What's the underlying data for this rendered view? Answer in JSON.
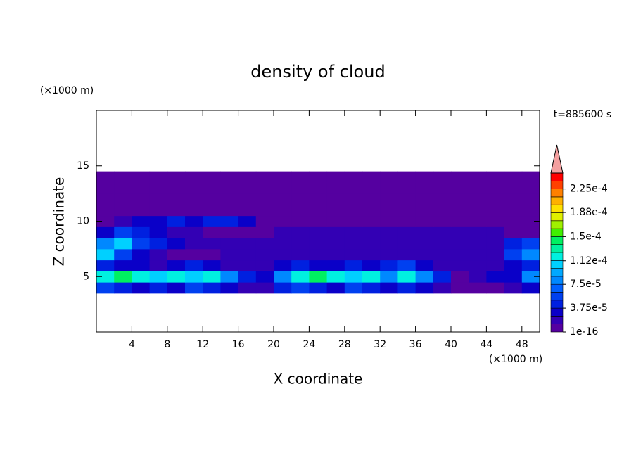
{
  "chart_data": {
    "type": "contour",
    "title": "density of cloud",
    "annotation": "t=885600 s",
    "x_unit": "(×1000 m)",
    "y_unit": "(×1000 m)",
    "xlabel": "X coordinate",
    "ylabel": "Z coordinate",
    "xlim": [
      0,
      50
    ],
    "ylim": [
      0,
      20
    ],
    "xticks": [
      4,
      8,
      12,
      16,
      20,
      24,
      28,
      32,
      36,
      40,
      44,
      48
    ],
    "yticks": [
      5,
      10,
      15
    ],
    "x": [
      1,
      3,
      5,
      7,
      9,
      11,
      13,
      15,
      17,
      19,
      21,
      23,
      25,
      27,
      29,
      31,
      33,
      35,
      37,
      39,
      41,
      43,
      45,
      47,
      49
    ],
    "z": [
      4,
      5,
      6,
      7,
      8,
      9,
      10,
      11,
      12,
      13,
      14
    ],
    "values": [
      [
        6e-05,
        4.5e-05,
        3e-05,
        4.5e-05,
        3e-05,
        6e-05,
        4.5e-05,
        3e-05,
        1.5e-05,
        1.5e-05,
        4.5e-05,
        6e-05,
        4.5e-05,
        3e-05,
        6e-05,
        4.5e-05,
        3e-05,
        4.5e-05,
        3e-05,
        1.5e-05,
        5e-06,
        5e-06,
        5e-06,
        1.5e-05,
        3e-05
      ],
      [
        0.00012,
        0.00014,
        0.00012,
        0.0001,
        0.00012,
        0.0001,
        0.00012,
        8e-05,
        4.5e-05,
        3e-05,
        8e-05,
        0.00012,
        0.00014,
        0.00012,
        0.0001,
        0.00012,
        8e-05,
        0.00012,
        8e-05,
        4.5e-05,
        5e-06,
        1.5e-05,
        3e-05,
        3e-05,
        8e-05
      ],
      [
        4.5e-05,
        3e-05,
        3e-05,
        1.5e-05,
        3e-05,
        4.5e-05,
        3e-05,
        1.5e-05,
        1.5e-05,
        1.5e-05,
        3e-05,
        4.5e-05,
        3e-05,
        3e-05,
        4.5e-05,
        3e-05,
        4.5e-05,
        6e-05,
        3e-05,
        1.5e-05,
        1.5e-05,
        1.5e-05,
        1.5e-05,
        3e-05,
        4.5e-05
      ],
      [
        0.0001,
        6e-05,
        3e-05,
        1.5e-05,
        5e-06,
        5e-06,
        5e-06,
        1.5e-05,
        1.5e-05,
        1.5e-05,
        1.5e-05,
        1.5e-05,
        1.5e-05,
        1.5e-05,
        1.5e-05,
        1.5e-05,
        1.5e-05,
        1.5e-05,
        1.5e-05,
        1.5e-05,
        1.5e-05,
        1.5e-05,
        1.5e-05,
        6e-05,
        8e-05
      ],
      [
        8e-05,
        0.0001,
        6e-05,
        4.5e-05,
        3e-05,
        1.5e-05,
        1.5e-05,
        1.5e-05,
        1.5e-05,
        1.5e-05,
        1.5e-05,
        1.5e-05,
        1.5e-05,
        1.5e-05,
        1.5e-05,
        1.5e-05,
        1.5e-05,
        1.5e-05,
        1.5e-05,
        1.5e-05,
        1.5e-05,
        1.5e-05,
        1.5e-05,
        4.5e-05,
        6e-05
      ],
      [
        3e-05,
        6e-05,
        4.5e-05,
        3e-05,
        1.5e-05,
        1.5e-05,
        5e-06,
        5e-06,
        5e-06,
        5e-06,
        1.5e-05,
        1.5e-05,
        1.5e-05,
        1.5e-05,
        1.5e-05,
        1.5e-05,
        1.5e-05,
        1.5e-05,
        1.5e-05,
        1.5e-05,
        1.5e-05,
        1.5e-05,
        1.5e-05,
        5e-06,
        5e-06
      ],
      [
        5e-06,
        1.5e-05,
        3e-05,
        3e-05,
        4.5e-05,
        3e-05,
        4.5e-05,
        4.5e-05,
        3e-05,
        5e-06,
        5e-06,
        5e-06,
        5e-06,
        5e-06,
        5e-06,
        5e-06,
        5e-06,
        5e-06,
        5e-06,
        5e-06,
        5e-06,
        5e-06,
        5e-06,
        5e-06,
        5e-06
      ],
      [
        5e-06,
        5e-06,
        5e-06,
        5e-06,
        5e-06,
        5e-06,
        5e-06,
        5e-06,
        5e-06,
        5e-06,
        5e-06,
        5e-06,
        5e-06,
        5e-06,
        5e-06,
        5e-06,
        5e-06,
        5e-06,
        5e-06,
        5e-06,
        5e-06,
        5e-06,
        5e-06,
        5e-06,
        5e-06
      ],
      [
        5e-06,
        5e-06,
        5e-06,
        5e-06,
        5e-06,
        5e-06,
        5e-06,
        5e-06,
        5e-06,
        5e-06,
        5e-06,
        5e-06,
        5e-06,
        5e-06,
        5e-06,
        5e-06,
        5e-06,
        5e-06,
        5e-06,
        5e-06,
        5e-06,
        5e-06,
        5e-06,
        5e-06,
        5e-06
      ],
      [
        5e-06,
        5e-06,
        5e-06,
        5e-06,
        5e-06,
        5e-06,
        5e-06,
        5e-06,
        5e-06,
        5e-06,
        5e-06,
        5e-06,
        5e-06,
        5e-06,
        5e-06,
        5e-06,
        5e-06,
        5e-06,
        5e-06,
        5e-06,
        5e-06,
        5e-06,
        5e-06,
        5e-06,
        5e-06
      ],
      [
        5e-06,
        5e-06,
        5e-06,
        5e-06,
        5e-06,
        5e-06,
        5e-06,
        5e-06,
        5e-06,
        5e-06,
        5e-06,
        5e-06,
        5e-06,
        5e-06,
        5e-06,
        5e-06,
        5e-06,
        5e-06,
        5e-06,
        5e-06,
        5e-06,
        5e-06,
        5e-06,
        5e-06,
        5e-06
      ]
    ],
    "levels": [
      1e-16,
      1.25e-05,
      2.5e-05,
      3.75e-05,
      5e-05,
      6.25e-05,
      7.5e-05,
      8.75e-05,
      0.0001,
      0.0001125,
      0.000125,
      0.0001375,
      0.00015,
      0.0001625,
      0.000175,
      0.0001875,
      0.0002,
      0.0002125,
      0.000225,
      0.0002375,
      0.00025
    ],
    "colors": [
      "#5500a0",
      "#3300b4",
      "#0a00c8",
      "#0020e0",
      "#0040f0",
      "#0060ff",
      "#0088ff",
      "#00a8ff",
      "#00d0ff",
      "#00f0e0",
      "#00f0a0",
      "#00f060",
      "#40f000",
      "#a0f000",
      "#e0f000",
      "#ffe000",
      "#ffb000",
      "#ff8000",
      "#ff4000",
      "#ff0000"
    ],
    "over_color": "#f4a0a0",
    "cbticks": [
      {
        "value": 1e-16,
        "label": "1e-16"
      },
      {
        "value": 3.75e-05,
        "label": "3.75e-5"
      },
      {
        "value": 7.5e-05,
        "label": "7.5e-5"
      },
      {
        "value": 0.000112,
        "label": "1.12e-4"
      },
      {
        "value": 0.00015,
        "label": "1.5e-4"
      },
      {
        "value": 0.000188,
        "label": "1.88e-4"
      },
      {
        "value": 0.000225,
        "label": "2.25e-4"
      }
    ]
  }
}
